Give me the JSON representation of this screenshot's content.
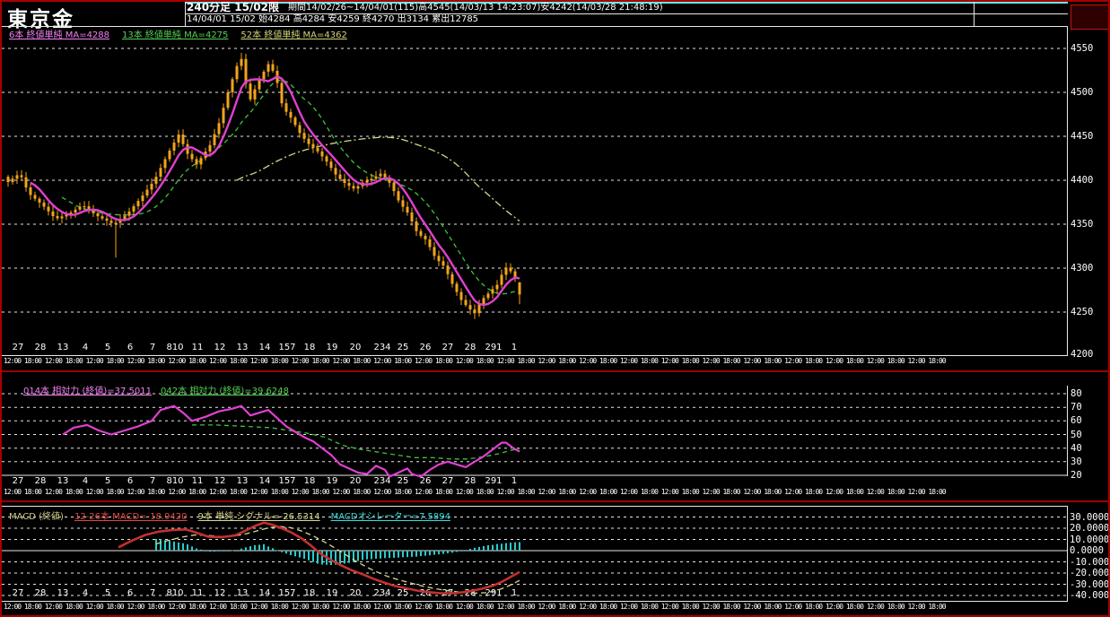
{
  "header": {
    "title": "東京金",
    "timeframe": "240分足 15/02限",
    "period_info": "期間14/02/26~14/04/01(115)高4545(14/03/13 14:23:07)安4242(14/03/28 21:48:19)",
    "session_info": "14/04/01 15/02 始4284 高4284 安4259 終4270 出3134 累出12785"
  },
  "legend": {
    "items": [
      {
        "text": "6本 終値単純 MA=4288",
        "color": "#f380f3"
      },
      {
        "text": "13本 終値単純 MA=4275",
        "color": "#52d152"
      },
      {
        "text": "52本 終値単純 MA=4362",
        "color": "#d3d378"
      }
    ]
  },
  "rsi_header": {
    "items": [
      {
        "text": "014本 相対力 (終値)=37.5011",
        "color": "#f380f3"
      },
      {
        "text": "042本 相対力 (終値)=39.6248",
        "color": "#52d152"
      }
    ]
  },
  "macd_header": {
    "label": "MACD (終値)",
    "items": [
      {
        "text": "12-26本 MACD=-18.9420",
        "color": "#e04848"
      },
      {
        "text": "9本 単純 シグナル=-26.5314",
        "color": "#d8d890"
      },
      {
        "text": "MACDオシレーター=7.5894",
        "color": "#38dcdc"
      }
    ]
  },
  "time_axis": {
    "cell": "12:00 18:00 ",
    "repeat": 23
  },
  "colors": {
    "candle": "#f2a41c",
    "ma6": "#e040d0",
    "ma13": "#3cc43c",
    "ma52": "#d6d68c",
    "rsi14": "#e040d0",
    "rsi42": "#3cc43c",
    "macd_line": "#c43030",
    "signal_line": "#d8d890",
    "histogram": "#28cccc",
    "grid": "#e8e8e8"
  },
  "chart_data": [
    {
      "type": "candlestick",
      "instrument": "東京金 240分足 15/02限",
      "bar_count": 115,
      "x_start": 7,
      "x_step": 5,
      "x_labels": [
        [
          18,
          "27"
        ],
        [
          43,
          "28"
        ],
        [
          68,
          "13"
        ],
        [
          93,
          "4"
        ],
        [
          118,
          "5"
        ],
        [
          143,
          "6"
        ],
        [
          168,
          "7"
        ],
        [
          193,
          "810"
        ],
        [
          218,
          "11"
        ],
        [
          243,
          "12"
        ],
        [
          268,
          "13"
        ],
        [
          293,
          "14"
        ],
        [
          318,
          "157"
        ],
        [
          343,
          "18"
        ],
        [
          368,
          "19"
        ],
        [
          394,
          "20"
        ],
        [
          424,
          "234"
        ],
        [
          447,
          "25"
        ],
        [
          472,
          "26"
        ],
        [
          497,
          "27"
        ],
        [
          522,
          "28"
        ],
        [
          548,
          "291"
        ],
        [
          571,
          "1"
        ]
      ],
      "y_ticks": [
        4550,
        4500,
        4450,
        4400,
        4350,
        4300,
        4250,
        4200
      ],
      "ylim": [
        4200,
        4570
      ],
      "close_keypoints": [
        [
          7,
          4398
        ],
        [
          20,
          4408
        ],
        [
          30,
          4385
        ],
        [
          45,
          4372
        ],
        [
          60,
          4356
        ],
        [
          75,
          4362
        ],
        [
          90,
          4372
        ],
        [
          105,
          4360
        ],
        [
          125,
          4350
        ],
        [
          140,
          4362
        ],
        [
          155,
          4380
        ],
        [
          170,
          4400
        ],
        [
          185,
          4430
        ],
        [
          197,
          4452
        ],
        [
          207,
          4430
        ],
        [
          217,
          4418
        ],
        [
          232,
          4440
        ],
        [
          242,
          4465
        ],
        [
          252,
          4500
        ],
        [
          262,
          4530
        ],
        [
          267,
          4538
        ],
        [
          272,
          4510
        ],
        [
          277,
          4492
        ],
        [
          287,
          4515
        ],
        [
          297,
          4532
        ],
        [
          305,
          4520
        ],
        [
          313,
          4483
        ],
        [
          323,
          4470
        ],
        [
          333,
          4452
        ],
        [
          343,
          4440
        ],
        [
          353,
          4432
        ],
        [
          363,
          4420
        ],
        [
          373,
          4405
        ],
        [
          383,
          4396
        ],
        [
          393,
          4390
        ],
        [
          403,
          4398
        ],
        [
          413,
          4402
        ],
        [
          423,
          4408
        ],
        [
          433,
          4396
        ],
        [
          443,
          4375
        ],
        [
          453,
          4362
        ],
        [
          463,
          4340
        ],
        [
          473,
          4332
        ],
        [
          483,
          4312
        ],
        [
          493,
          4302
        ],
        [
          503,
          4280
        ],
        [
          513,
          4262
        ],
        [
          523,
          4252
        ],
        [
          528,
          4248
        ],
        [
          533,
          4262
        ],
        [
          543,
          4272
        ],
        [
          553,
          4282
        ],
        [
          558,
          4295
        ],
        [
          563,
          4302
        ],
        [
          568,
          4295
        ],
        [
          572,
          4290
        ],
        [
          577,
          4270
        ]
      ],
      "wick_overrides": [
        [
          24,
          "low",
          4312
        ],
        [
          52,
          "high",
          4545
        ],
        [
          104,
          "low",
          4242
        ]
      ],
      "last_bar": {
        "open": 4284,
        "high": 4284,
        "low": 4259,
        "close": 4270
      },
      "high_of_period": 4545,
      "low_of_period": 4242,
      "ma_periods": [
        6,
        13,
        52
      ]
    },
    {
      "type": "line",
      "name": "相対力 (RSI)",
      "y_ticks": [
        80,
        70,
        60,
        50,
        40,
        30,
        20
      ],
      "ylim": [
        20,
        80
      ],
      "rsi14_keypoints": [
        [
          68,
          50
        ],
        [
          80,
          55
        ],
        [
          95,
          57
        ],
        [
          108,
          53
        ],
        [
          122,
          50
        ],
        [
          137,
          53
        ],
        [
          152,
          56
        ],
        [
          167,
          60
        ],
        [
          177,
          68
        ],
        [
          192,
          71
        ],
        [
          202,
          66
        ],
        [
          212,
          60
        ],
        [
          227,
          63
        ],
        [
          242,
          67
        ],
        [
          257,
          69
        ],
        [
          267,
          71
        ],
        [
          277,
          64
        ],
        [
          287,
          66
        ],
        [
          297,
          68
        ],
        [
          307,
          62
        ],
        [
          317,
          56
        ],
        [
          327,
          52
        ],
        [
          337,
          48
        ],
        [
          347,
          45
        ],
        [
          357,
          40
        ],
        [
          367,
          35
        ],
        [
          377,
          28
        ],
        [
          387,
          25
        ],
        [
          397,
          22
        ],
        [
          407,
          21
        ],
        [
          417,
          27
        ],
        [
          427,
          24
        ],
        [
          432,
          19
        ],
        [
          442,
          22
        ],
        [
          452,
          25
        ],
        [
          457,
          21
        ],
        [
          467,
          19
        ],
        [
          477,
          24
        ],
        [
          487,
          28
        ],
        [
          497,
          30
        ],
        [
          507,
          28
        ],
        [
          517,
          26
        ],
        [
          527,
          30
        ],
        [
          537,
          34
        ],
        [
          547,
          39
        ],
        [
          557,
          44
        ],
        [
          562,
          44
        ],
        [
          570,
          40
        ],
        [
          577,
          37.5
        ]
      ],
      "rsi42_keypoints": [
        [
          212,
          57
        ],
        [
          240,
          57
        ],
        [
          270,
          56
        ],
        [
          300,
          55
        ],
        [
          320,
          53
        ],
        [
          340,
          51
        ],
        [
          360,
          48
        ],
        [
          380,
          42
        ],
        [
          400,
          39
        ],
        [
          420,
          37
        ],
        [
          440,
          35
        ],
        [
          460,
          33
        ],
        [
          480,
          33
        ],
        [
          500,
          32
        ],
        [
          520,
          32
        ],
        [
          540,
          34
        ],
        [
          555,
          36
        ],
        [
          565,
          38
        ],
        [
          577,
          39.6
        ]
      ],
      "final_values": {
        "rsi14": 37.5011,
        "rsi42": 39.6248
      }
    },
    {
      "type": "macd",
      "name": "MACD (終値)",
      "y_ticks": [
        "30.0000",
        "20.0000",
        "10.0000",
        "0.0000",
        "-10.0000",
        "-20.0000",
        "-30.0000",
        "-40.0000"
      ],
      "y_tick_values": [
        30,
        20,
        10,
        0,
        -10,
        -20,
        -30,
        -40
      ],
      "ylim": [
        -40,
        30
      ],
      "macd_keypoints": [
        [
          130,
          3
        ],
        [
          145,
          9
        ],
        [
          160,
          14
        ],
        [
          175,
          17
        ],
        [
          190,
          18.5
        ],
        [
          205,
          19
        ],
        [
          215,
          16.5
        ],
        [
          230,
          12.5
        ],
        [
          245,
          12
        ],
        [
          260,
          13.5
        ],
        [
          272,
          18
        ],
        [
          282,
          22
        ],
        [
          292,
          25
        ],
        [
          302,
          23
        ],
        [
          312,
          20
        ],
        [
          322,
          16.5
        ],
        [
          334,
          11
        ],
        [
          344,
          5
        ],
        [
          354,
          -2
        ],
        [
          366,
          -8
        ],
        [
          378,
          -13
        ],
        [
          390,
          -17.5
        ],
        [
          402,
          -21
        ],
        [
          414,
          -25
        ],
        [
          426,
          -28.5
        ],
        [
          438,
          -31.5
        ],
        [
          450,
          -33.5
        ],
        [
          462,
          -35.5
        ],
        [
          475,
          -37
        ],
        [
          490,
          -38
        ],
        [
          505,
          -38
        ],
        [
          520,
          -36.5
        ],
        [
          535,
          -34
        ],
        [
          548,
          -31
        ],
        [
          558,
          -27.5
        ],
        [
          567,
          -23.5
        ],
        [
          577,
          -18.94
        ]
      ],
      "signal_keypoints": [
        [
          172,
          6
        ],
        [
          185,
          9
        ],
        [
          200,
          12
        ],
        [
          215,
          14
        ],
        [
          230,
          13.5
        ],
        [
          245,
          12.5
        ],
        [
          258,
          13
        ],
        [
          272,
          15
        ],
        [
          286,
          18
        ],
        [
          298,
          20.5
        ],
        [
          310,
          21.5
        ],
        [
          322,
          20.5
        ],
        [
          334,
          17.5
        ],
        [
          346,
          13.5
        ],
        [
          358,
          8.5
        ],
        [
          370,
          3
        ],
        [
          382,
          -3
        ],
        [
          394,
          -9
        ],
        [
          406,
          -14.5
        ],
        [
          418,
          -19
        ],
        [
          430,
          -23
        ],
        [
          442,
          -26
        ],
        [
          454,
          -28.5
        ],
        [
          466,
          -31
        ],
        [
          480,
          -33.5
        ],
        [
          495,
          -35.5
        ],
        [
          510,
          -37
        ],
        [
          525,
          -38
        ],
        [
          540,
          -37.5
        ],
        [
          552,
          -35.5
        ],
        [
          562,
          -32.5
        ],
        [
          570,
          -29.5
        ],
        [
          577,
          -26.53
        ]
      ],
      "histogram": "macd_minus_signal",
      "final_values": {
        "macd": -18.942,
        "signal": -26.5314,
        "oscillator": 7.5894
      }
    }
  ]
}
